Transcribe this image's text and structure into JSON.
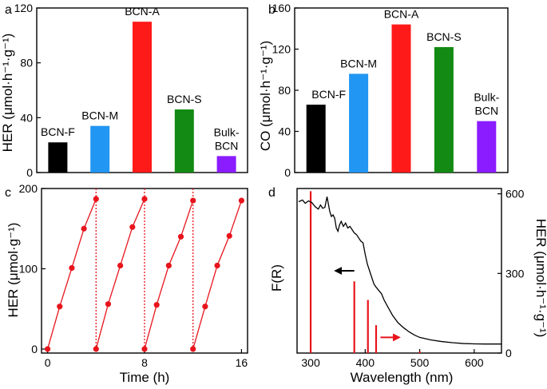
{
  "chart_data": [
    {
      "panel": "a",
      "type": "bar",
      "categories": [
        "BCN-F",
        "BCN-M",
        "BCN-A",
        "BCN-S",
        "Bulk-BCN"
      ],
      "category_label_lines": [
        [
          "BCN-F"
        ],
        [
          "BCN-M"
        ],
        [
          "BCN-A"
        ],
        [
          "BCN-S"
        ],
        [
          "Bulk-",
          "BCN"
        ]
      ],
      "values": [
        22,
        34,
        110,
        46,
        12
      ],
      "colors": [
        "#000000",
        "#2196f3",
        "#ff1a1a",
        "#138a13",
        "#8a1cff"
      ],
      "ylabel": "HER (μmol·h⁻¹·g⁻¹)",
      "ylim": [
        0,
        120
      ],
      "yticks": [
        0,
        40,
        80,
        120
      ],
      "xlabel": ""
    },
    {
      "panel": "b",
      "type": "bar",
      "categories": [
        "BCN-F",
        "BCN-M",
        "BCN-A",
        "BCN-S",
        "Bulk-BCN"
      ],
      "category_label_lines": [
        [
          "BCN-F"
        ],
        [
          "BCN-M"
        ],
        [
          "BCN-A"
        ],
        [
          "BCN-S"
        ],
        [
          "Bulk-",
          "BCN"
        ]
      ],
      "values": [
        66,
        96,
        144,
        122,
        50
      ],
      "colors": [
        "#000000",
        "#2196f3",
        "#ff1a1a",
        "#138a13",
        "#8a1cff"
      ],
      "ylabel": "CO (μmol·h⁻¹·g⁻¹)",
      "ylim": [
        0,
        160
      ],
      "yticks": [
        0,
        40,
        80,
        120,
        160
      ],
      "xlabel": ""
    },
    {
      "panel": "c",
      "type": "line",
      "xlabel": "Time (h)",
      "ylabel": "HER (μmol·g⁻¹)",
      "xlim": [
        -0.5,
        16.5
      ],
      "ylim": [
        -5,
        200
      ],
      "xticks": [
        0,
        8,
        16
      ],
      "yticks": [
        0,
        100,
        200
      ],
      "color": "#e8141c",
      "cycles": [
        {
          "x": [
            0,
            1,
            2,
            3,
            4
          ],
          "y": [
            0,
            53,
            101,
            150,
            187
          ]
        },
        {
          "x": [
            4,
            5,
            6,
            7,
            8
          ],
          "y": [
            0,
            56,
            104,
            152,
            187
          ]
        },
        {
          "x": [
            8,
            9,
            10,
            11,
            12
          ],
          "y": [
            0,
            55,
            104,
            140,
            185
          ]
        },
        {
          "x": [
            12,
            13,
            14,
            15,
            16
          ],
          "y": [
            0,
            53,
            104,
            141,
            185
          ]
        }
      ],
      "cycle_separators_x": [
        4,
        8,
        12
      ]
    },
    {
      "panel": "d",
      "type": "line",
      "xlabel": "Wavelength (nm)",
      "ylabel_left": "F(R)",
      "ylabel_right": "HER (μmol·h⁻¹·g⁻¹)",
      "xlim": [
        275,
        650
      ],
      "xticks": [
        300,
        400,
        500,
        600
      ],
      "y_right_lim": [
        0,
        620
      ],
      "y_right_ticks": [
        0,
        300,
        600
      ],
      "y_left_lim": [
        0,
        1
      ],
      "absorption_spectrum": {
        "name": "F(R)",
        "color": "#000000",
        "x": [
          278,
          285,
          290,
          296,
          302,
          308,
          314,
          318,
          322,
          326,
          330,
          335,
          338,
          341,
          344,
          347,
          350,
          353,
          356,
          360,
          364,
          368,
          372,
          376,
          380,
          384,
          388,
          392,
          396,
          400,
          404,
          408,
          412,
          416,
          420,
          425,
          430,
          435,
          440,
          445,
          450,
          460,
          470,
          480,
          490,
          500,
          520,
          540,
          560,
          580,
          600,
          620,
          650
        ],
        "y": [
          0.92,
          0.93,
          0.91,
          0.925,
          0.915,
          0.89,
          0.875,
          0.9,
          0.88,
          0.885,
          0.95,
          0.86,
          0.83,
          0.84,
          0.82,
          0.76,
          0.74,
          0.78,
          0.8,
          0.77,
          0.79,
          0.76,
          0.77,
          0.75,
          0.73,
          0.72,
          0.7,
          0.68,
          0.67,
          0.6,
          0.54,
          0.5,
          0.46,
          0.42,
          0.4,
          0.38,
          0.36,
          0.32,
          0.29,
          0.26,
          0.23,
          0.185,
          0.155,
          0.13,
          0.11,
          0.095,
          0.08,
          0.07,
          0.063,
          0.058,
          0.056,
          0.055,
          0.055
        ]
      },
      "her_bars": {
        "name": "HER",
        "color": "#e8141c",
        "x": [
          300,
          380,
          405,
          420,
          500
        ],
        "values": [
          610,
          270,
          200,
          105,
          6
        ]
      },
      "annotations": [
        {
          "text": "",
          "direction": "left",
          "color": "#000000",
          "target": "F(R) axis"
        },
        {
          "text": "",
          "direction": "right",
          "color": "#e8141c",
          "target": "HER axis"
        }
      ]
    }
  ],
  "panel_letters": [
    "a",
    "b",
    "c",
    "d"
  ]
}
